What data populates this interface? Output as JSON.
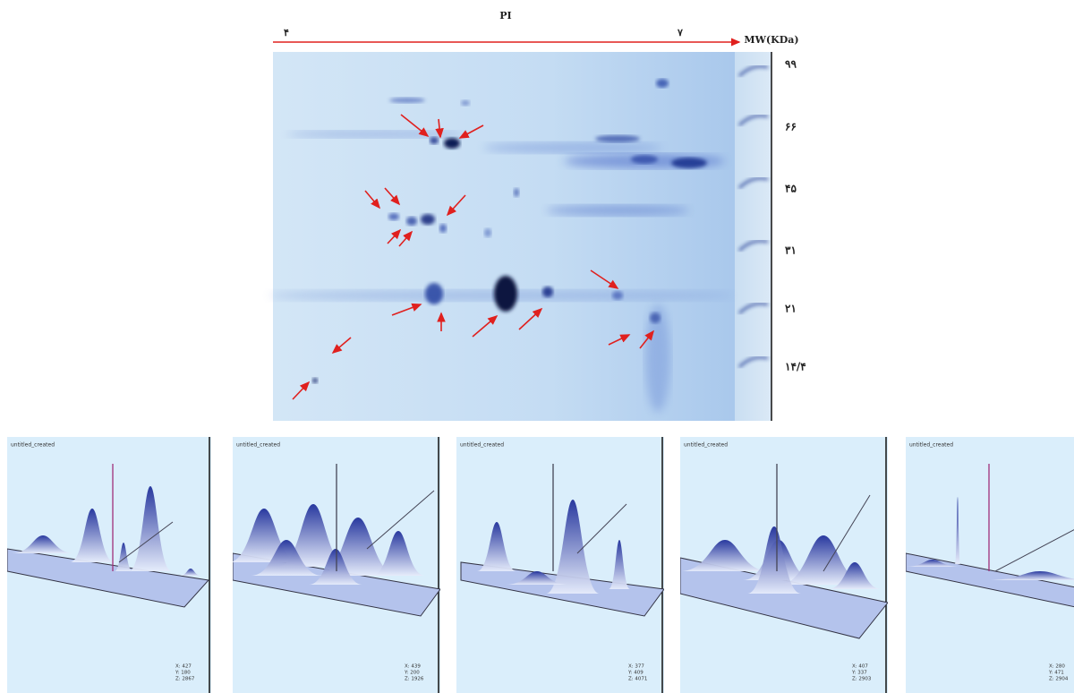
{
  "header": {
    "pi_label": "PI",
    "pi_start": "۴",
    "pi_end": "۷",
    "mw_label": "MW(KDa)"
  },
  "mw_ticks": [
    "۹۹",
    "۶۶",
    "۴۵",
    "۳۱",
    "۲۱",
    "۱۴/۴"
  ],
  "panels": [
    {
      "title": "untitled_created",
      "coords": [
        "X: 427",
        "Y: 180",
        "Z: 2867"
      ]
    },
    {
      "title": "untitled_created",
      "coords": [
        "X: 439",
        "Y: 200",
        "Z: 1926"
      ]
    },
    {
      "title": "untitled_created",
      "coords": [
        "X: 377",
        "Y: 409",
        "Z: 4071"
      ]
    },
    {
      "title": "untitled_created",
      "coords": [
        "X: 407",
        "Y: 337",
        "Z: 2903"
      ]
    },
    {
      "title": "untitled_created",
      "coords": [
        "X: 280",
        "Y: 471",
        "Z: 2904"
      ]
    }
  ]
}
